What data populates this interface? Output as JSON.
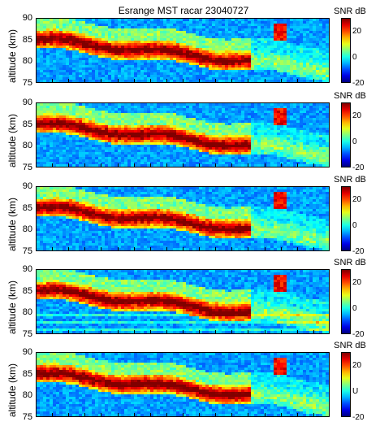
{
  "chart_data": {
    "type": "heatmap",
    "title": "Esrange MST racar 23040727",
    "ylabel": "altitude (km)",
    "ylim": [
      75,
      90
    ],
    "yticks": [
      "90",
      "85",
      "80",
      "75"
    ],
    "colorbar": {
      "label": "SNR dB",
      "range": [
        -20,
        30
      ],
      "ticks": [
        "20",
        "0",
        "-20"
      ],
      "colormap": "jet"
    },
    "panels": [
      {
        "panel": 1,
        "bottom_ylabel_tick": "75"
      },
      {
        "panel": 2,
        "bottom_ylabel_tick": "75"
      },
      {
        "panel": 3,
        "bottom_ylabel_tick": "75"
      },
      {
        "panel": 4,
        "bottom_ylabel_tick": "75"
      },
      {
        "panel": 5,
        "bottom_ylabel_tick": "75"
      }
    ],
    "colorbar_ticks_per_panel": [
      [
        "20",
        "0",
        "-20"
      ],
      [
        "20",
        "0",
        "-20"
      ],
      [
        "20",
        "0",
        "-20"
      ],
      [
        "20",
        "0",
        "-20"
      ],
      [
        "20",
        "U",
        "-20"
      ]
    ]
  }
}
